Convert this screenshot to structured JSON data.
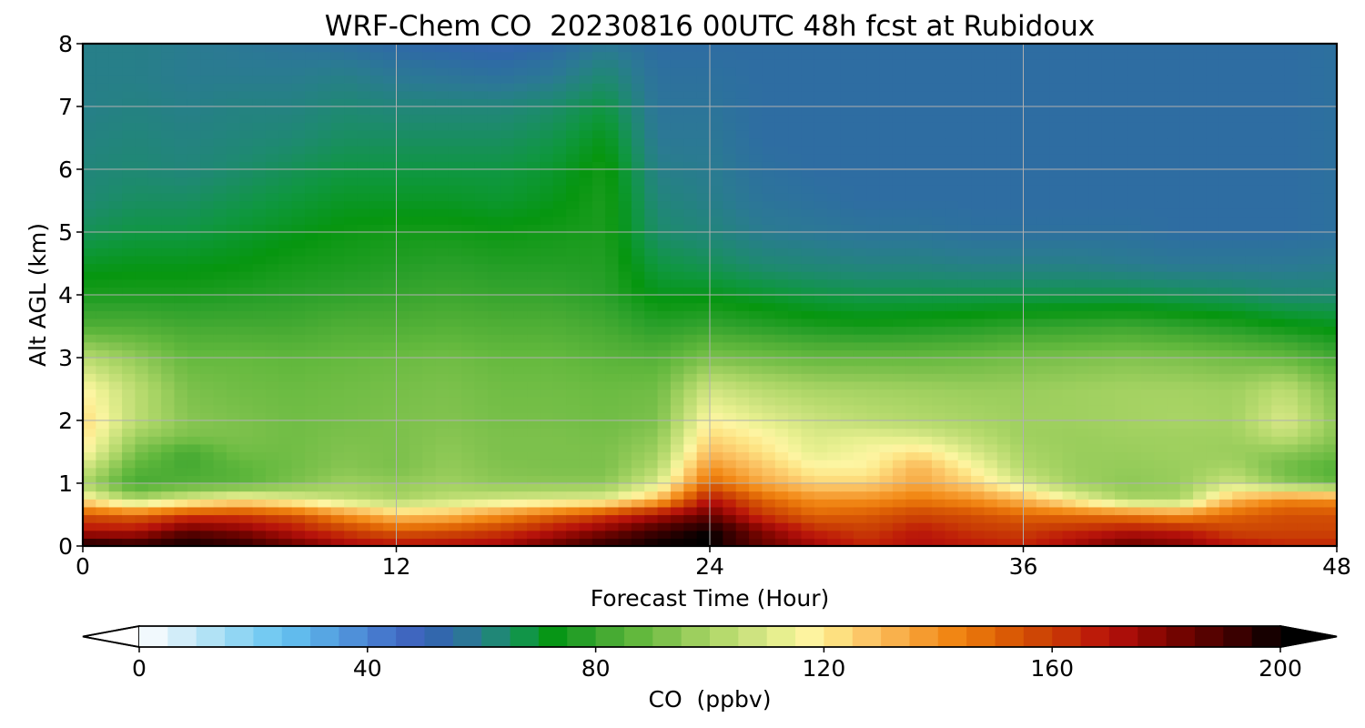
{
  "chart_data": {
    "type": "heatmap",
    "title": "WRF-Chem CO  20230816 00UTC 48h fcst at Rubidoux",
    "xlabel": "Forecast Time (Hour)",
    "ylabel": "Alt AGL (km)",
    "xlim": [
      0,
      48
    ],
    "ylim": [
      0,
      8
    ],
    "xticks": [
      0,
      12,
      24,
      36,
      48
    ],
    "yticks": [
      0,
      1,
      2,
      3,
      4,
      5,
      6,
      7,
      8
    ],
    "grid": true,
    "colorbar": {
      "label": "CO  (ppbv)",
      "min": 0,
      "max": 200,
      "step": 5,
      "ticks": [
        0,
        40,
        80,
        120,
        160,
        200
      ],
      "extend": "both",
      "orientation": "horizontal",
      "colors": [
        "#ffffff",
        "#e3f3fb",
        "#c3e8f7",
        "#a3ddf4",
        "#85d1f3",
        "#6ac6f2",
        "#5cb5ea",
        "#559fe0",
        "#4c89d6",
        "#4372c9",
        "#3d62bb",
        "#2f68a8",
        "#2b7a93",
        "#1e8a70",
        "#0f9740",
        "#06960f",
        "#2aa02a",
        "#4aac34",
        "#64b93e",
        "#80c24e",
        "#9dcf5e",
        "#b6da6d",
        "#cde37f",
        "#e6ef8e",
        "#fdf5a2",
        "#fde383",
        "#fcc96a",
        "#f9b451",
        "#f69f34",
        "#f38a17",
        "#e9760b",
        "#dd5f05",
        "#d04b05",
        "#c83a05",
        "#c02008",
        "#b4110b",
        "#9a0a05",
        "#7e0500",
        "#620300",
        "#460000",
        "#2c0000",
        "#000000"
      ]
    },
    "times": [
      0,
      2,
      4,
      6,
      8,
      10,
      12,
      14,
      16,
      18,
      20,
      22,
      24,
      26,
      28,
      30,
      32,
      34,
      36,
      38,
      40,
      42,
      44,
      46,
      48
    ],
    "altitudes": [
      0,
      0.25,
      0.5,
      0.75,
      1,
      1.25,
      1.5,
      1.75,
      2,
      2.5,
      3,
      3.5,
      4,
      4.5,
      5,
      5.5,
      6,
      6.5,
      7,
      7.5,
      8
    ],
    "co_ppbv": [
      [
        200,
        195,
        200,
        195,
        185,
        175,
        170,
        172,
        175,
        185,
        195,
        200,
        200,
        185,
        175,
        165,
        172,
        168,
        165,
        175,
        185,
        180,
        170,
        165,
        165
      ],
      [
        170,
        170,
        185,
        180,
        170,
        160,
        152,
        155,
        160,
        170,
        180,
        192,
        200,
        180,
        165,
        160,
        168,
        162,
        160,
        165,
        170,
        168,
        158,
        158,
        158
      ],
      [
        155,
        150,
        160,
        160,
        155,
        140,
        128,
        130,
        140,
        150,
        160,
        172,
        185,
        162,
        150,
        152,
        158,
        155,
        150,
        148,
        145,
        140,
        150,
        155,
        155
      ],
      [
        120,
        100,
        110,
        118,
        112,
        105,
        100,
        105,
        108,
        110,
        112,
        130,
        170,
        150,
        140,
        140,
        145,
        140,
        130,
        115,
        100,
        100,
        130,
        142,
        140
      ],
      [
        100,
        82,
        85,
        86,
        92,
        98,
        96,
        98,
        95,
        95,
        95,
        110,
        150,
        135,
        125,
        125,
        135,
        125,
        110,
        98,
        95,
        97,
        108,
        95,
        88
      ],
      [
        108,
        86,
        82,
        86,
        90,
        94,
        92,
        96,
        93,
        92,
        92,
        102,
        140,
        128,
        118,
        118,
        132,
        118,
        102,
        97,
        96,
        97,
        100,
        90,
        84
      ],
      [
        118,
        92,
        82,
        90,
        90,
        93,
        92,
        95,
        92,
        92,
        92,
        98,
        130,
        122,
        112,
        116,
        122,
        110,
        100,
        97,
        97,
        98,
        97,
        95,
        90
      ],
      [
        122,
        98,
        92,
        92,
        90,
        92,
        92,
        94,
        92,
        92,
        91,
        95,
        124,
        118,
        110,
        112,
        110,
        104,
        98,
        97,
        98,
        98,
        98,
        105,
        94
      ],
      [
        124,
        104,
        94,
        92,
        90,
        91,
        92,
        93,
        91,
        91,
        90,
        92,
        118,
        112,
        107,
        104,
        102,
        100,
        98,
        98,
        99,
        100,
        99,
        110,
        95
      ],
      [
        118,
        104,
        92,
        90,
        89,
        90,
        91,
        92,
        90,
        90,
        89,
        90,
        108,
        103,
        100,
        99,
        98,
        97,
        97,
        98,
        99,
        99,
        98,
        104,
        92
      ],
      [
        103,
        96,
        88,
        88,
        87,
        88,
        89,
        90,
        88,
        88,
        86,
        85,
        92,
        90,
        88,
        88,
        88,
        89,
        91,
        92,
        93,
        92,
        90,
        88,
        82
      ],
      [
        84,
        84,
        82,
        82,
        82,
        84,
        84,
        85,
        84,
        84,
        82,
        78,
        80,
        78,
        76,
        75,
        76,
        77,
        79,
        80,
        81,
        79,
        77,
        74,
        72
      ],
      [
        76,
        76,
        76,
        77,
        78,
        79,
        80,
        81,
        80,
        80,
        78,
        72,
        72,
        70,
        68,
        67,
        67,
        67,
        67,
        67,
        67,
        66,
        65,
        63,
        63
      ],
      [
        71,
        72,
        72,
        73,
        75,
        76,
        77,
        78,
        77,
        77,
        77,
        68,
        66,
        63,
        62,
        61,
        61,
        60,
        60,
        60,
        59,
        58,
        58,
        58,
        59
      ],
      [
        66,
        68,
        68,
        70,
        72,
        74,
        75,
        75,
        74,
        75,
        76,
        64,
        62,
        59,
        58,
        57,
        57,
        56,
        56,
        56,
        56,
        55,
        55,
        55,
        56
      ],
      [
        63,
        65,
        65,
        67,
        69,
        71,
        71,
        71,
        70,
        72,
        76,
        62,
        60,
        57,
        56,
        55,
        55,
        55,
        55,
        55,
        55,
        55,
        55,
        55,
        56
      ],
      [
        62,
        63,
        62,
        64,
        66,
        68,
        68,
        68,
        68,
        70,
        75,
        60,
        59,
        56,
        55,
        55,
        55,
        55,
        55,
        55,
        55,
        55,
        55,
        55,
        56
      ],
      [
        61,
        62,
        61,
        62,
        63,
        65,
        65,
        65,
        65,
        67,
        72,
        58,
        58,
        55,
        55,
        55,
        55,
        55,
        55,
        55,
        55,
        55,
        55,
        55,
        56
      ],
      [
        60,
        61,
        60,
        61,
        61,
        63,
        62,
        62,
        62,
        64,
        68,
        57,
        57,
        55,
        55,
        55,
        55,
        55,
        55,
        55,
        55,
        55,
        55,
        55,
        56
      ],
      [
        60,
        60,
        59,
        59,
        59,
        60,
        58,
        57,
        56,
        58,
        63,
        56,
        56,
        55,
        55,
        55,
        55,
        55,
        55,
        55,
        55,
        55,
        55,
        55,
        56
      ],
      [
        60,
        60,
        59,
        58,
        57,
        56,
        54,
        53,
        52,
        54,
        58,
        55,
        55,
        55,
        55,
        55,
        55,
        55,
        55,
        55,
        55,
        55,
        55,
        55,
        56
      ]
    ]
  }
}
